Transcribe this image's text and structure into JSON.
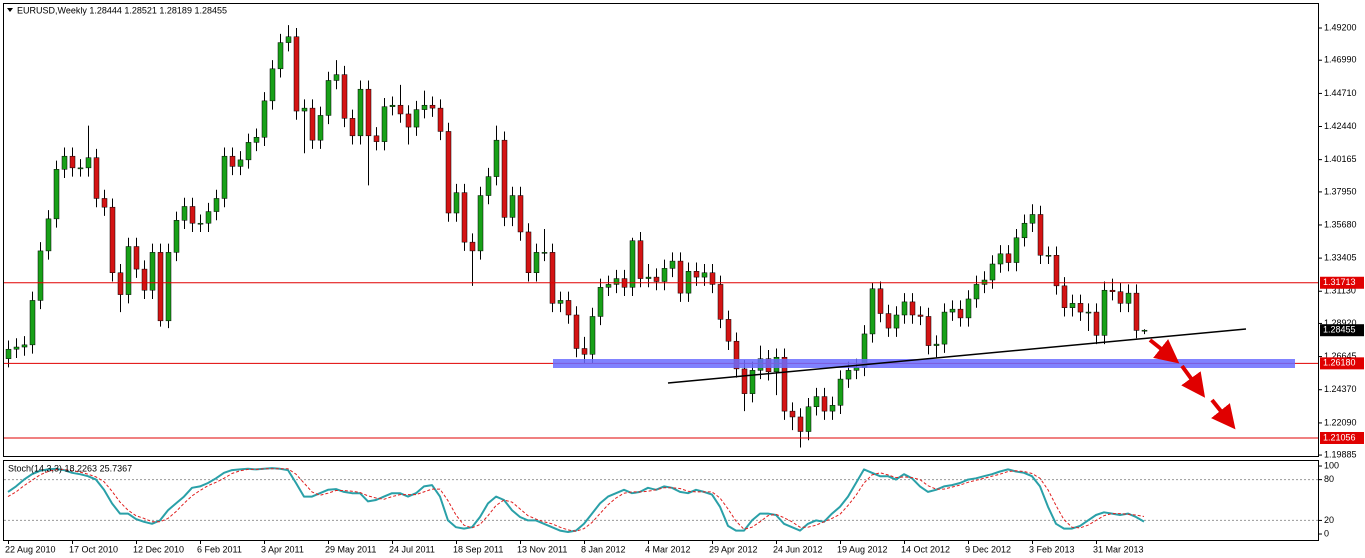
{
  "chart_data": [
    {
      "type": "candlestick",
      "title": "EURUSD,Weekly  1.28444 1.28521 1.28189 1.28455",
      "categories": [
        "22 Aug 2010",
        null,
        null,
        null,
        null,
        null,
        null,
        null,
        "17 Oct 2010",
        null,
        null,
        null,
        null,
        null,
        null,
        null,
        "12 Dec 2010",
        null,
        null,
        null,
        null,
        null,
        null,
        null,
        "6 Feb 2011",
        null,
        null,
        null,
        null,
        null,
        null,
        null,
        "3 Apr 2011",
        null,
        null,
        null,
        null,
        null,
        null,
        null,
        "29 May 2011",
        null,
        null,
        null,
        null,
        null,
        null,
        null,
        "24 Jul 2011",
        null,
        null,
        null,
        null,
        null,
        null,
        null,
        "18 Sep 2011",
        null,
        null,
        null,
        null,
        null,
        null,
        null,
        "13 Nov 2011",
        null,
        null,
        null,
        null,
        null,
        null,
        null,
        "8 Jan 2012",
        null,
        null,
        null,
        null,
        null,
        null,
        null,
        "4 Mar 2012",
        null,
        null,
        null,
        null,
        null,
        null,
        null,
        "29 Apr 2012",
        null,
        null,
        null,
        null,
        null,
        null,
        null,
        "24 Jun 2012",
        null,
        null,
        null,
        null,
        null,
        null,
        null,
        "19 Aug 2012",
        null,
        null,
        null,
        null,
        null,
        null,
        null,
        "14 Oct 2012",
        null,
        null,
        null,
        null,
        null,
        null,
        null,
        "9 Dec 2012",
        null,
        null,
        null,
        null,
        null,
        null,
        null,
        "3 Feb 2013",
        null,
        null,
        null,
        null,
        null,
        null,
        null,
        "31 Mar 2013",
        null,
        null,
        null,
        null,
        null,
        null
      ],
      "open": [
        1.265,
        1.2715,
        1.273,
        1.2745,
        1.305,
        1.339,
        1.361,
        1.395,
        1.404,
        1.396,
        1.396,
        1.403,
        1.375,
        1.369,
        1.324,
        1.309,
        1.342,
        1.3265,
        1.312,
        1.338,
        1.291,
        1.338,
        1.36,
        1.3695,
        1.358,
        1.358,
        1.366,
        1.375,
        1.404,
        1.397,
        1.4015,
        1.4135,
        1.417,
        1.442,
        1.464,
        1.482,
        1.486,
        1.435,
        1.437,
        1.415,
        1.432,
        1.456,
        1.46,
        1.43,
        1.418,
        1.45,
        1.418,
        1.414,
        1.438,
        1.439,
        1.433,
        1.424,
        1.436,
        1.439,
        1.437,
        1.421,
        1.365,
        1.379,
        1.345,
        1.339,
        1.377,
        1.39,
        1.415,
        1.362,
        1.377,
        1.352,
        1.324,
        1.338,
        1.338,
        1.303,
        1.305,
        1.295,
        1.272,
        1.268,
        1.294,
        1.314,
        1.316,
        1.32,
        1.314,
        1.346,
        1.32,
        1.321,
        1.318,
        1.327,
        1.332,
        1.31,
        1.325,
        1.321,
        1.324,
        1.316,
        1.292,
        1.277,
        1.258,
        1.241,
        1.257,
        1.265,
        1.256,
        1.266,
        1.229,
        1.225,
        1.215,
        1.232,
        1.239,
        1.229,
        1.233,
        1.251,
        1.257,
        1.259,
        1.282,
        1.313,
        1.296,
        1.286,
        1.295,
        1.304,
        1.295,
        1.294,
        1.274,
        1.275,
        1.297,
        1.299,
        1.293,
        1.306,
        1.316,
        1.319,
        1.33,
        1.337,
        1.331,
        1.348,
        1.358,
        1.364,
        1.336,
        1.336,
        1.315,
        1.3,
        1.303,
        1.297,
        1.297,
        1.281,
        1.312,
        1.311,
        1.303,
        1.31,
        1.28444
      ],
      "high": [
        1.2775,
        1.279,
        1.2805,
        1.311,
        1.345,
        1.367,
        1.401,
        1.41,
        1.41,
        1.402,
        1.425,
        1.409,
        1.381,
        1.375,
        1.33,
        1.348,
        1.348,
        1.3325,
        1.344,
        1.344,
        1.344,
        1.366,
        1.3755,
        1.3755,
        1.364,
        1.372,
        1.381,
        1.41,
        1.41,
        1.4075,
        1.4195,
        1.423,
        1.448,
        1.47,
        1.488,
        1.494,
        1.492,
        1.443,
        1.443,
        1.438,
        1.462,
        1.47,
        1.466,
        1.436,
        1.456,
        1.456,
        1.424,
        1.444,
        1.445,
        1.453,
        1.439,
        1.442,
        1.449,
        1.445,
        1.443,
        1.427,
        1.385,
        1.385,
        1.351,
        1.383,
        1.396,
        1.425,
        1.421,
        1.383,
        1.383,
        1.358,
        1.344,
        1.354,
        1.344,
        1.311,
        1.311,
        1.301,
        1.28,
        1.3,
        1.32,
        1.322,
        1.326,
        1.326,
        1.348,
        1.352,
        1.33,
        1.327,
        1.333,
        1.338,
        1.338,
        1.331,
        1.331,
        1.33,
        1.33,
        1.322,
        1.298,
        1.283,
        1.264,
        1.263,
        1.274,
        1.271,
        1.272,
        1.272,
        1.235,
        1.231,
        1.238,
        1.245,
        1.245,
        1.239,
        1.257,
        1.263,
        1.265,
        1.288,
        1.317,
        1.318,
        1.302,
        1.301,
        1.31,
        1.31,
        1.301,
        1.3,
        1.281,
        1.303,
        1.305,
        1.305,
        1.312,
        1.322,
        1.325,
        1.336,
        1.343,
        1.343,
        1.354,
        1.364,
        1.371,
        1.37,
        1.342,
        1.342,
        1.321,
        1.309,
        1.309,
        1.303,
        1.303,
        1.318,
        1.32,
        1.317,
        1.316,
        1.316,
        1.28521
      ],
      "low": [
        1.259,
        1.2655,
        1.267,
        1.2685,
        1.299,
        1.333,
        1.355,
        1.389,
        1.39,
        1.39,
        1.39,
        1.369,
        1.363,
        1.318,
        1.297,
        1.303,
        1.3205,
        1.306,
        1.306,
        1.287,
        1.286,
        1.332,
        1.354,
        1.352,
        1.352,
        1.352,
        1.36,
        1.369,
        1.391,
        1.391,
        1.3955,
        1.4075,
        1.411,
        1.436,
        1.458,
        1.476,
        1.429,
        1.406,
        1.409,
        1.409,
        1.426,
        1.45,
        1.424,
        1.412,
        1.412,
        1.384,
        1.408,
        1.408,
        1.432,
        1.427,
        1.412,
        1.418,
        1.43,
        1.431,
        1.415,
        1.359,
        1.359,
        1.339,
        1.315,
        1.333,
        1.371,
        1.384,
        1.356,
        1.356,
        1.346,
        1.318,
        1.318,
        1.332,
        1.297,
        1.297,
        1.289,
        1.266,
        1.262,
        1.262,
        1.288,
        1.308,
        1.31,
        1.308,
        1.308,
        1.314,
        1.314,
        1.312,
        1.312,
        1.321,
        1.304,
        1.304,
        1.315,
        1.315,
        1.31,
        1.286,
        1.271,
        1.252,
        1.229,
        1.235,
        1.251,
        1.25,
        1.24,
        1.223,
        1.216,
        1.204,
        1.209,
        1.226,
        1.223,
        1.223,
        1.227,
        1.245,
        1.251,
        1.253,
        1.276,
        1.29,
        1.28,
        1.28,
        1.289,
        1.289,
        1.288,
        1.268,
        1.266,
        1.269,
        1.291,
        1.287,
        1.287,
        1.3,
        1.31,
        1.313,
        1.324,
        1.325,
        1.325,
        1.342,
        1.352,
        1.33,
        1.33,
        1.309,
        1.294,
        1.294,
        1.291,
        1.284,
        1.275,
        1.275,
        1.305,
        1.297,
        1.297,
        1.279,
        1.28189
      ],
      "close": [
        1.2715,
        1.273,
        1.2745,
        1.305,
        1.339,
        1.361,
        1.395,
        1.404,
        1.396,
        1.396,
        1.403,
        1.375,
        1.369,
        1.324,
        1.309,
        1.342,
        1.3265,
        1.312,
        1.338,
        1.291,
        1.338,
        1.36,
        1.3695,
        1.358,
        1.358,
        1.366,
        1.375,
        1.404,
        1.397,
        1.4015,
        1.4135,
        1.417,
        1.442,
        1.464,
        1.482,
        1.486,
        1.435,
        1.437,
        1.415,
        1.432,
        1.456,
        1.46,
        1.43,
        1.418,
        1.45,
        1.418,
        1.414,
        1.438,
        1.439,
        1.433,
        1.424,
        1.436,
        1.439,
        1.437,
        1.421,
        1.365,
        1.379,
        1.345,
        1.339,
        1.377,
        1.39,
        1.415,
        1.362,
        1.377,
        1.352,
        1.324,
        1.338,
        1.338,
        1.303,
        1.305,
        1.295,
        1.272,
        1.268,
        1.294,
        1.314,
        1.316,
        1.32,
        1.314,
        1.346,
        1.32,
        1.321,
        1.318,
        1.327,
        1.332,
        1.31,
        1.325,
        1.321,
        1.324,
        1.316,
        1.292,
        1.277,
        1.258,
        1.241,
        1.257,
        1.265,
        1.256,
        1.266,
        1.229,
        1.225,
        1.215,
        1.232,
        1.239,
        1.229,
        1.233,
        1.251,
        1.257,
        1.259,
        1.282,
        1.313,
        1.296,
        1.286,
        1.295,
        1.304,
        1.295,
        1.294,
        1.274,
        1.275,
        1.297,
        1.299,
        1.293,
        1.306,
        1.316,
        1.319,
        1.33,
        1.337,
        1.331,
        1.348,
        1.358,
        1.364,
        1.336,
        1.336,
        1.315,
        1.3,
        1.303,
        1.297,
        1.297,
        1.281,
        1.312,
        1.311,
        1.303,
        1.31,
        1.2844,
        1.28455
      ],
      "up_color": "#18a018",
      "down_color": "#d41414",
      "wick_color": "#000000",
      "ylim": [
        1.1982,
        1.5078
      ],
      "yticks": [
        {
          "value": 1.492,
          "label": "1.49200"
        },
        {
          "value": 1.4699,
          "label": "1.46990"
        },
        {
          "value": 1.4471,
          "label": "1.44710"
        },
        {
          "value": 1.4244,
          "label": "1.42440"
        },
        {
          "value": 1.40165,
          "label": "1.40165"
        },
        {
          "value": 1.3795,
          "label": "1.37950"
        },
        {
          "value": 1.3568,
          "label": "1.35680"
        },
        {
          "value": 1.33405,
          "label": "1.33405"
        },
        {
          "value": 1.3113,
          "label": "1.31130"
        },
        {
          "value": 1.2892,
          "label": "1.28920"
        },
        {
          "value": 1.26645,
          "label": "1.26645"
        },
        {
          "value": 1.2437,
          "label": "1.24370"
        },
        {
          "value": 1.2209,
          "label": "1.22090"
        },
        {
          "value": 1.19885,
          "label": "1.19885"
        }
      ],
      "levels": [
        {
          "value": 1.31713,
          "color": "#e00000"
        },
        {
          "value": 1.2618,
          "label": "1.26180",
          "color": "#e00000"
        },
        {
          "value": 1.21056,
          "color": "#e00000"
        }
      ],
      "last_price": 1.28455,
      "last_price_color": "#000000"
    },
    {
      "type": "line",
      "title": "Stoch(14,3,3) 18.2263 25.7367",
      "series": [
        {
          "color": "#2aa0a8",
          "width": 2,
          "values": [
            62,
            70,
            80,
            88,
            93,
            95,
            96,
            94,
            90,
            88,
            85,
            80,
            65,
            45,
            30,
            30,
            22,
            18,
            15,
            20,
            35,
            45,
            55,
            68,
            70,
            75,
            82,
            90,
            94,
            95,
            96,
            95,
            96,
            97,
            96,
            94,
            75,
            55,
            55,
            60,
            65,
            66,
            62,
            60,
            60,
            48,
            50,
            55,
            60,
            60,
            55,
            60,
            70,
            72,
            55,
            20,
            10,
            8,
            10,
            25,
            45,
            55,
            50,
            35,
            25,
            20,
            20,
            15,
            10,
            5,
            3,
            5,
            15,
            30,
            45,
            55,
            60,
            65,
            60,
            62,
            68,
            65,
            70,
            68,
            62,
            60,
            65,
            62,
            58,
            40,
            12,
            5,
            5,
            20,
            30,
            30,
            28,
            15,
            10,
            5,
            15,
            20,
            18,
            30,
            40,
            55,
            75,
            95,
            90,
            85,
            85,
            80,
            88,
            82,
            70,
            62,
            65,
            70,
            72,
            75,
            80,
            82,
            85,
            88,
            92,
            95,
            92,
            90,
            85,
            70,
            40,
            15,
            8,
            8,
            12,
            20,
            28,
            32,
            30,
            28,
            30,
            25,
            18.2263
          ]
        },
        {
          "color": "#e02020",
          "width": 1,
          "dash": true,
          "values": [
            55,
            62,
            71,
            79,
            87,
            92,
            95,
            95,
            93,
            91,
            88,
            84,
            77,
            63,
            47,
            35,
            27,
            23,
            18,
            18,
            23,
            33,
            45,
            56,
            64,
            71,
            76,
            82,
            89,
            93,
            95,
            95,
            96,
            96,
            96,
            96,
            88,
            75,
            62,
            57,
            60,
            64,
            64,
            63,
            61,
            56,
            53,
            51,
            55,
            58,
            58,
            58,
            62,
            66,
            66,
            49,
            28,
            13,
            9,
            14,
            27,
            42,
            50,
            47,
            37,
            27,
            22,
            18,
            15,
            10,
            6,
            4,
            8,
            17,
            30,
            43,
            53,
            60,
            62,
            62,
            63,
            65,
            68,
            68,
            67,
            63,
            62,
            62,
            62,
            53,
            37,
            19,
            7,
            10,
            18,
            27,
            29,
            24,
            18,
            10,
            10,
            13,
            18,
            23,
            29,
            42,
            57,
            75,
            87,
            90,
            87,
            83,
            84,
            83,
            80,
            71,
            66,
            66,
            69,
            72,
            76,
            79,
            82,
            85,
            88,
            92,
            93,
            92,
            89,
            82,
            65,
            42,
            21,
            10,
            9,
            13,
            20,
            27,
            30,
            30,
            29,
            28,
            25.7367
          ]
        }
      ],
      "ylim": [
        -8.8,
        107.4
      ],
      "yticks": [
        0,
        20,
        80,
        100
      ],
      "levels": [
        20,
        80
      ]
    }
  ]
}
